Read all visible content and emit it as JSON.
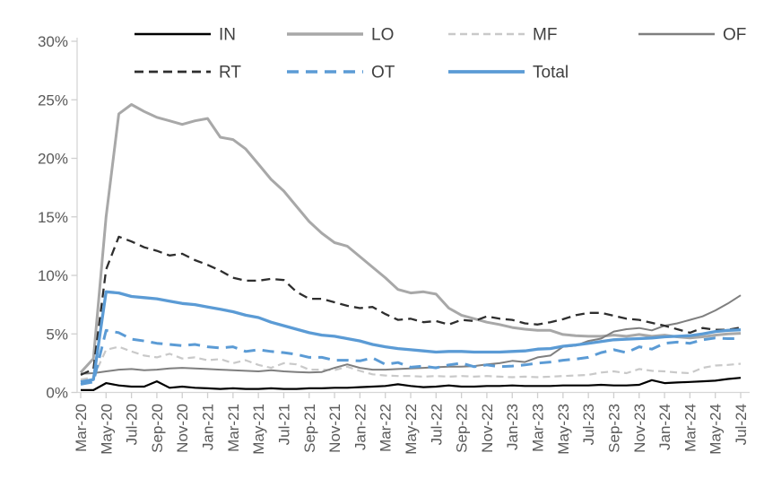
{
  "chart_data": {
    "type": "line",
    "title": "",
    "xlabel": "",
    "ylabel": "",
    "x_axis": {
      "first_point": "Mar-20",
      "last_point": "Jul-24",
      "n_points": 53,
      "points_per_tick": 2,
      "tick_labels": [
        "Mar-20",
        "May-20",
        "Jul-20",
        "Sep-20",
        "Nov-20",
        "Jan-21",
        "Mar-21",
        "May-21",
        "Jul-21",
        "Sep-21",
        "Nov-21",
        "Jan-22",
        "Mar-22",
        "May-22",
        "Jul-22",
        "Sep-22",
        "Nov-22",
        "Jan-23",
        "Mar-23",
        "May-23",
        "Jul-23",
        "Sep-23",
        "Nov-23",
        "Jan-24",
        "Mar-24",
        "May-24",
        "Jul-24"
      ]
    },
    "y_axis": {
      "min": 0,
      "max": 30,
      "step": 5,
      "tick_labels": [
        "0%",
        "5%",
        "10%",
        "15%",
        "20%",
        "25%",
        "30%"
      ]
    },
    "grid": "off",
    "legend_position": "top",
    "legend_rows": [
      [
        "IN",
        "LO",
        "MF",
        "OF"
      ],
      [
        "RT",
        "OT",
        "Total"
      ]
    ],
    "series": [
      {
        "name": "IN",
        "color": "#000000",
        "style": "solid",
        "width": 2.2,
        "values": [
          0.2,
          0.2,
          0.8,
          0.6,
          0.5,
          0.5,
          0.95,
          0.4,
          0.5,
          0.4,
          0.35,
          0.3,
          0.35,
          0.3,
          0.3,
          0.35,
          0.3,
          0.3,
          0.35,
          0.35,
          0.4,
          0.4,
          0.45,
          0.5,
          0.55,
          0.7,
          0.55,
          0.45,
          0.5,
          0.6,
          0.5,
          0.5,
          0.55,
          0.55,
          0.6,
          0.55,
          0.55,
          0.55,
          0.6,
          0.6,
          0.6,
          0.65,
          0.6,
          0.6,
          0.65,
          1.05,
          0.8,
          0.85,
          0.9,
          0.95,
          1.0,
          1.15,
          1.25
        ]
      },
      {
        "name": "LO",
        "color": "#a8a8a8",
        "style": "solid",
        "width": 3,
        "values": [
          1.7,
          2.9,
          15.0,
          23.8,
          24.6,
          24.0,
          23.5,
          23.2,
          22.9,
          23.2,
          23.4,
          21.8,
          21.6,
          20.8,
          19.5,
          18.2,
          17.2,
          15.9,
          14.6,
          13.6,
          12.8,
          12.5,
          11.6,
          10.7,
          9.8,
          8.8,
          8.5,
          8.6,
          8.4,
          7.2,
          6.6,
          6.3,
          6.0,
          5.8,
          5.55,
          5.4,
          5.3,
          5.3,
          4.95,
          4.85,
          4.8,
          4.8,
          4.9,
          4.8,
          4.95,
          4.8,
          4.9,
          4.75,
          4.65,
          4.75,
          4.9,
          5.0,
          5.05
        ]
      },
      {
        "name": "MF",
        "color": "#c9c9c9",
        "style": "dashed",
        "width": 2.2,
        "dash": "8 5",
        "values": [
          1.1,
          1.3,
          3.65,
          3.9,
          3.5,
          3.15,
          3.0,
          3.3,
          2.9,
          3.0,
          2.75,
          2.85,
          2.5,
          2.75,
          2.35,
          2.1,
          2.5,
          2.4,
          1.95,
          1.95,
          1.9,
          2.2,
          1.85,
          1.55,
          1.45,
          1.4,
          1.4,
          1.35,
          1.4,
          1.35,
          1.4,
          1.35,
          1.4,
          1.35,
          1.3,
          1.35,
          1.3,
          1.35,
          1.4,
          1.45,
          1.5,
          1.7,
          1.8,
          1.65,
          2.0,
          1.85,
          1.8,
          1.7,
          1.65,
          2.1,
          2.3,
          2.35,
          2.45
        ]
      },
      {
        "name": "OF",
        "color": "#7f7f7f",
        "style": "solid",
        "width": 2,
        "values": [
          1.6,
          1.65,
          1.8,
          1.95,
          2.0,
          1.9,
          1.95,
          2.05,
          2.1,
          2.05,
          2.0,
          1.95,
          1.9,
          1.85,
          1.8,
          1.9,
          1.8,
          1.75,
          1.7,
          1.75,
          2.1,
          2.4,
          2.1,
          1.95,
          1.95,
          2.0,
          2.05,
          2.1,
          2.15,
          2.2,
          2.2,
          2.25,
          2.4,
          2.5,
          2.7,
          2.6,
          3.0,
          3.15,
          3.9,
          4.0,
          4.4,
          4.6,
          5.2,
          5.4,
          5.5,
          5.3,
          5.7,
          5.9,
          6.2,
          6.5,
          7.0,
          7.6,
          8.3
        ]
      },
      {
        "name": "RT",
        "color": "#2e2e2e",
        "style": "dashed",
        "width": 2.3,
        "dash": "10 6",
        "values": [
          1.5,
          2.0,
          10.5,
          13.3,
          12.9,
          12.4,
          12.1,
          11.7,
          11.85,
          11.3,
          10.9,
          10.4,
          9.8,
          9.55,
          9.55,
          9.7,
          9.6,
          8.6,
          8.0,
          8.0,
          7.7,
          7.4,
          7.2,
          7.3,
          6.7,
          6.2,
          6.3,
          6.0,
          6.1,
          5.8,
          6.2,
          6.1,
          6.5,
          6.3,
          6.2,
          5.9,
          5.8,
          6.0,
          6.25,
          6.6,
          6.8,
          6.8,
          6.55,
          6.3,
          6.2,
          5.95,
          5.7,
          5.4,
          5.1,
          5.5,
          5.35,
          5.35,
          5.55
        ]
      },
      {
        "name": "OT",
        "color": "#5b9bd5",
        "style": "dashed",
        "width": 3,
        "dash": "13 8",
        "values": [
          0.7,
          0.9,
          5.3,
          5.1,
          4.55,
          4.4,
          4.2,
          4.1,
          4.0,
          4.1,
          3.9,
          3.8,
          3.9,
          3.5,
          3.65,
          3.5,
          3.4,
          3.25,
          3.0,
          3.0,
          2.75,
          2.75,
          2.7,
          2.95,
          2.4,
          2.55,
          2.15,
          2.25,
          2.1,
          2.35,
          2.5,
          2.2,
          2.35,
          2.2,
          2.25,
          2.35,
          2.5,
          2.6,
          2.75,
          2.85,
          3.0,
          3.4,
          3.65,
          3.4,
          3.9,
          3.7,
          4.2,
          4.3,
          4.2,
          4.5,
          4.65,
          4.6,
          4.6
        ]
      },
      {
        "name": "Total",
        "color": "#5b9bd5",
        "style": "solid",
        "width": 3.3,
        "values": [
          0.9,
          1.1,
          8.6,
          8.5,
          8.2,
          8.1,
          8.0,
          7.8,
          7.6,
          7.5,
          7.3,
          7.1,
          6.9,
          6.6,
          6.4,
          6.0,
          5.7,
          5.4,
          5.1,
          4.9,
          4.8,
          4.6,
          4.4,
          4.1,
          3.9,
          3.75,
          3.65,
          3.55,
          3.45,
          3.5,
          3.5,
          3.45,
          3.45,
          3.45,
          3.5,
          3.55,
          3.7,
          3.75,
          3.95,
          4.05,
          4.2,
          4.35,
          4.5,
          4.55,
          4.6,
          4.65,
          4.75,
          4.8,
          4.85,
          5.0,
          5.2,
          5.3,
          5.35
        ]
      }
    ],
    "colors": {
      "axis_line": "#d6d6d6",
      "tick_mark": "#cfcfcf",
      "axis_text": "#595959",
      "legend_text": "#404040",
      "accent_blue": "#5b9bd5"
    }
  }
}
